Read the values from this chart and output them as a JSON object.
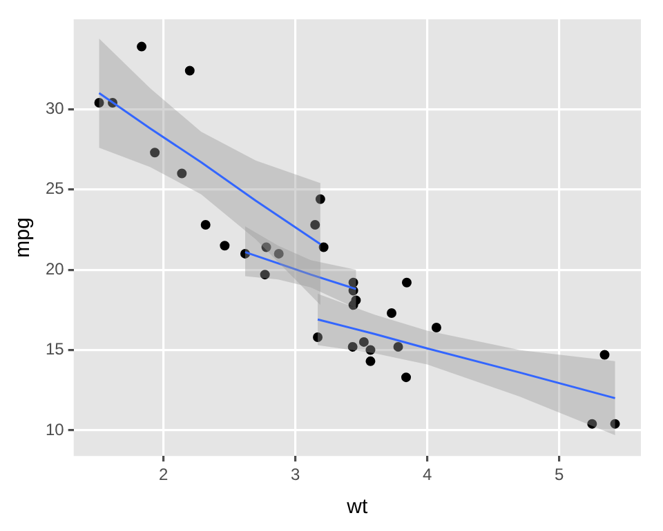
{
  "chart_data": {
    "type": "scatter",
    "xlabel": "wt",
    "ylabel": "mpg",
    "xlim": [
      1.32,
      5.62
    ],
    "ylim": [
      8.4,
      35.6
    ],
    "xticks": [
      2,
      3,
      4,
      5
    ],
    "yticks": [
      10,
      15,
      20,
      25,
      30
    ],
    "grid": true,
    "legend": false,
    "series": [
      {
        "marker": "circle",
        "color": "#000000",
        "x": [
          2.62,
          2.875,
          2.32,
          3.215,
          3.44,
          3.46,
          3.57,
          3.19,
          3.15,
          3.44,
          3.44,
          4.07,
          3.73,
          3.78,
          5.25,
          5.424,
          5.345,
          2.2,
          1.615,
          1.835,
          2.465,
          3.52,
          3.435,
          3.84,
          3.845,
          1.935,
          2.14,
          1.513,
          3.17,
          2.77,
          3.57,
          2.78
        ],
        "values": [
          21.0,
          21.0,
          22.8,
          21.4,
          18.7,
          18.1,
          14.3,
          24.4,
          22.8,
          19.2,
          17.8,
          16.4,
          17.3,
          15.2,
          10.4,
          10.4,
          14.7,
          32.4,
          30.4,
          33.9,
          21.5,
          15.5,
          15.2,
          13.3,
          19.2,
          27.3,
          26.0,
          30.4,
          15.8,
          19.7,
          15.0,
          21.4
        ]
      },
      {
        "type": "line",
        "color": "#3366ff",
        "x": [
          1.513,
          1.9,
          2.286,
          2.7,
          3.19
        ],
        "values": [
          31.0,
          28.8,
          26.7,
          24.3,
          21.6
        ],
        "marker": "none",
        "lower": [
          27.6,
          26.4,
          24.7,
          21.9,
          17.8
        ],
        "upper": [
          34.4,
          31.3,
          28.6,
          26.8,
          25.4
        ]
      },
      {
        "type": "line",
        "color": "#3366ff",
        "x": [
          2.62,
          2.87,
          3.117,
          3.46
        ],
        "values": [
          21.1,
          20.4,
          19.7,
          18.8
        ],
        "marker": "none",
        "lower": [
          19.6,
          19.4,
          18.9,
          17.6
        ],
        "upper": [
          22.7,
          21.5,
          20.6,
          20.0
        ]
      },
      {
        "type": "line",
        "color": "#3366ff",
        "x": [
          3.17,
          3.6,
          4.0,
          4.7,
          5.424
        ],
        "values": [
          16.9,
          16.0,
          15.1,
          13.6,
          12.0
        ],
        "marker": "none",
        "lower": [
          15.3,
          14.8,
          14.1,
          12.1,
          9.7
        ],
        "upper": [
          18.5,
          17.2,
          16.2,
          15.0,
          14.3
        ]
      }
    ]
  }
}
